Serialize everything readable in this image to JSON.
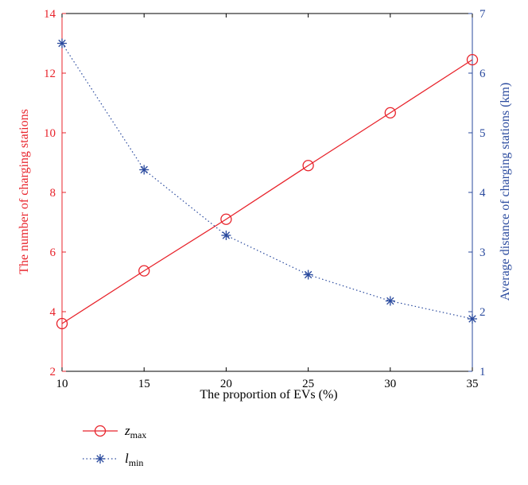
{
  "chart_data": {
    "type": "line",
    "title": "",
    "xlabel": "The proportion of EVs (%)",
    "ylabel_left": "The number of charging stations",
    "ylabel_right": "Average distance of charging stations (km)",
    "x": [
      10,
      15,
      20,
      25,
      30,
      35
    ],
    "xlim": [
      10,
      35
    ],
    "xticks": [
      "10",
      "15",
      "20",
      "25",
      "30",
      "35"
    ],
    "ylim_left": [
      2,
      14
    ],
    "yticks_left": [
      "2",
      "4",
      "6",
      "8",
      "10",
      "12",
      "14"
    ],
    "ylim_right": [
      1,
      7
    ],
    "yticks_right": [
      "1",
      "2",
      "3",
      "4",
      "5",
      "6",
      "7"
    ],
    "grid": false,
    "legend_position": "below",
    "colors": {
      "left_axis": "#e8232b",
      "right_axis": "#2a4a9e",
      "axes": "#000000"
    },
    "series": [
      {
        "name_main": "z",
        "name_sub": "max",
        "axis": "left",
        "values": [
          3.6,
          5.37,
          7.1,
          8.9,
          10.67,
          12.45
        ],
        "marker": "circle",
        "line": "solid",
        "color": "#e8232b"
      },
      {
        "name_main": "l",
        "name_sub": "min",
        "axis": "right",
        "values": [
          6.5,
          4.38,
          3.28,
          2.62,
          2.18,
          1.88
        ],
        "marker": "asterisk",
        "line": "dotted",
        "color": "#2a4a9e"
      }
    ]
  }
}
